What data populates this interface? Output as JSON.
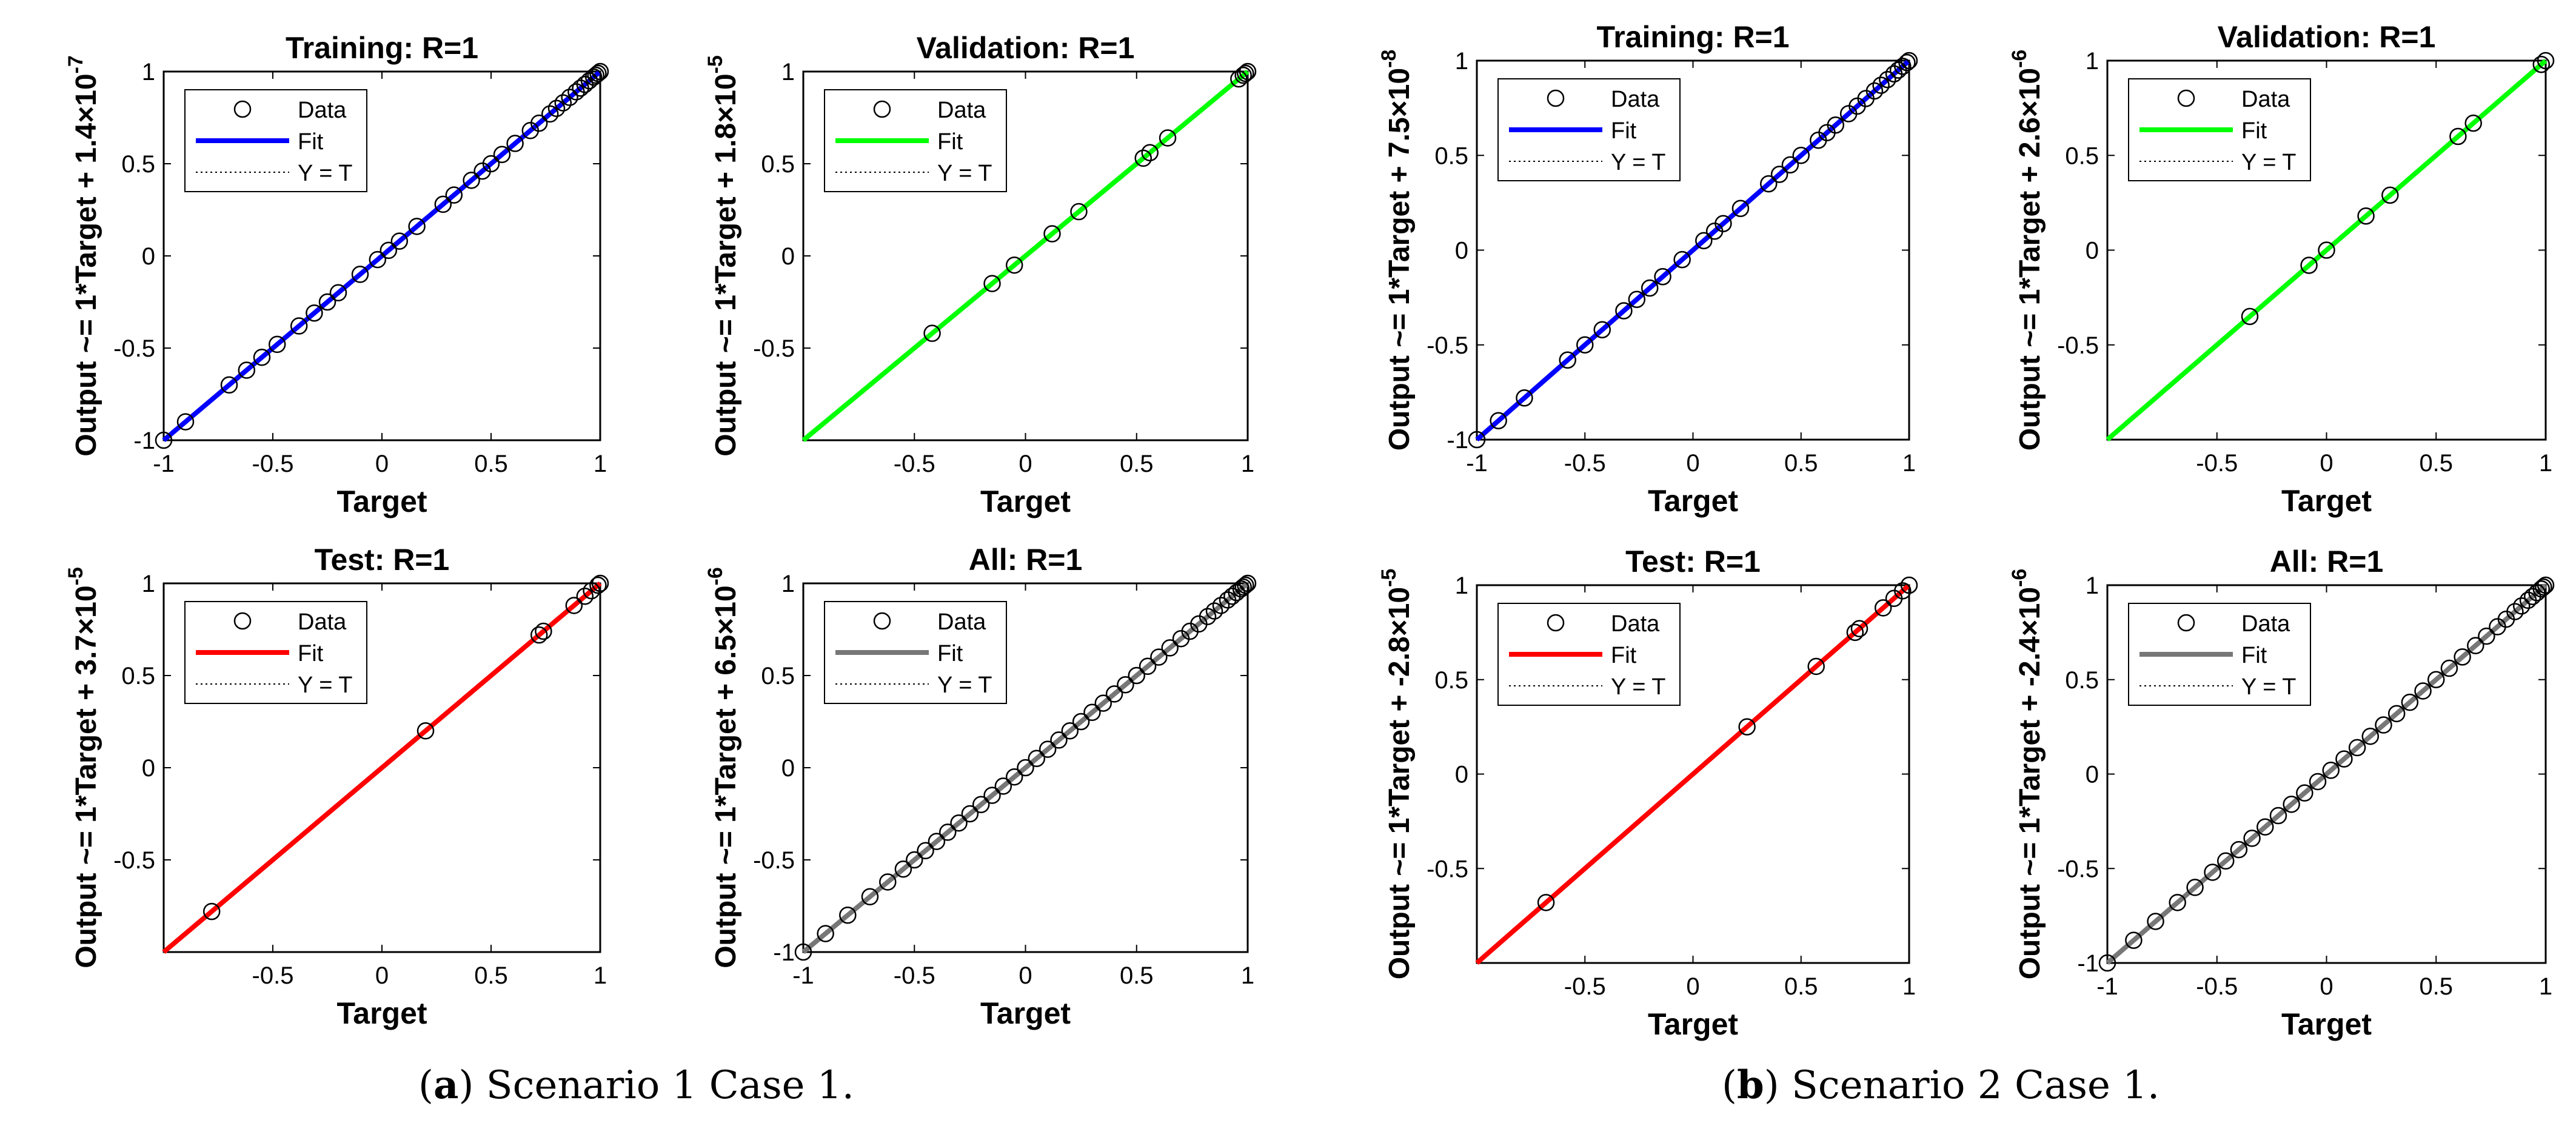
{
  "captions": [
    {
      "label": "a",
      "text": "Scenario 1 Case 1."
    },
    {
      "label": "b",
      "text": "Scenario 2 Case 1."
    }
  ],
  "legend_labels": {
    "data": "Data",
    "fit": "Fit",
    "ident": "Y = T"
  },
  "colors": {
    "training": "#0000ff",
    "validation": "#00ff00",
    "test": "#ff0000",
    "all": "#777777",
    "markers": "#000000"
  },
  "chart_data": [
    {
      "id": "s1-training",
      "type": "scatter",
      "title": "Training: R=1",
      "xlabel": "Target",
      "ylabel": "Output ~= 1*Target + 1.4×10",
      "ylabel_exp": "-7",
      "xlim": [
        -1,
        1
      ],
      "ylim": [
        -1,
        1
      ],
      "xticks": [
        "-1",
        "-0.5",
        "0",
        "0.5",
        "1"
      ],
      "yticks": [
        "-1",
        "-0.5",
        "0",
        "0.5",
        "1"
      ],
      "fit_color": "#0000ff",
      "legend_location": "top-left",
      "series": [
        {
          "name": "Data",
          "values": [
            -1,
            -0.9,
            -0.7,
            -0.62,
            -0.55,
            -0.48,
            -0.38,
            -0.31,
            -0.25,
            -0.2,
            -0.1,
            -0.02,
            0.03,
            0.08,
            0.16,
            0.28,
            0.33,
            0.41,
            0.46,
            0.5,
            0.55,
            0.61,
            0.68,
            0.72,
            0.77,
            0.8,
            0.83,
            0.86,
            0.89,
            0.91,
            0.93,
            0.95,
            0.97,
            0.98,
            0.99,
            1
          ]
        }
      ]
    },
    {
      "id": "s1-validation",
      "type": "scatter",
      "title": "Validation: R=1",
      "xlabel": "Target",
      "ylabel": "Output ~= 1*Target + 1.8×10",
      "ylabel_exp": "-5",
      "xlim": [
        -1,
        1
      ],
      "ylim": [
        -1,
        1
      ],
      "xticks": [
        "-0.5",
        "0",
        "0.5",
        "1"
      ],
      "yticks": [
        "-0.5",
        "0",
        "0.5",
        "1"
      ],
      "fit_color": "#00ff00",
      "legend_location": "top-left",
      "series": [
        {
          "name": "Data",
          "values": [
            -0.42,
            -0.15,
            -0.05,
            0.12,
            0.24,
            0.53,
            0.56,
            0.64,
            0.96,
            0.98,
            0.99,
            1
          ]
        }
      ]
    },
    {
      "id": "s1-test",
      "type": "scatter",
      "title": "Test: R=1",
      "xlabel": "Target",
      "ylabel": "Output ~= 1*Target + 3.7×10",
      "ylabel_exp": "-5",
      "xlim": [
        -1,
        1
      ],
      "ylim": [
        -1,
        1
      ],
      "xticks": [
        "-0.5",
        "0",
        "0.5",
        "1"
      ],
      "yticks": [
        "-0.5",
        "0",
        "0.5",
        "1"
      ],
      "fit_color": "#ff0000",
      "legend_location": "top-left",
      "series": [
        {
          "name": "Data",
          "values": [
            -0.78,
            0.2,
            0.72,
            0.74,
            0.88,
            0.93,
            0.96,
            0.99,
            1
          ]
        }
      ]
    },
    {
      "id": "s1-all",
      "type": "scatter",
      "title": "All: R=1",
      "xlabel": "Target",
      "ylabel": "Output ~= 1*Target + 6.5×10",
      "ylabel_exp": "-6",
      "xlim": [
        -1,
        1
      ],
      "ylim": [
        -1,
        1
      ],
      "xticks": [
        "-1",
        "-0.5",
        "0",
        "0.5",
        "1"
      ],
      "yticks": [
        "-1",
        "-0.5",
        "0",
        "0.5",
        "1"
      ],
      "fit_color": "#777777",
      "legend_location": "top-left",
      "series": [
        {
          "name": "Data",
          "values": [
            -1,
            -0.9,
            -0.8,
            -0.7,
            -0.62,
            -0.55,
            -0.5,
            -0.45,
            -0.4,
            -0.35,
            -0.3,
            -0.25,
            -0.2,
            -0.15,
            -0.1,
            -0.05,
            0,
            0.05,
            0.1,
            0.15,
            0.2,
            0.25,
            0.3,
            0.35,
            0.4,
            0.45,
            0.5,
            0.55,
            0.6,
            0.65,
            0.7,
            0.74,
            0.78,
            0.82,
            0.85,
            0.88,
            0.91,
            0.93,
            0.95,
            0.97,
            0.98,
            0.99,
            1
          ]
        }
      ]
    },
    {
      "id": "s2-training",
      "type": "scatter",
      "title": "Training: R=1",
      "xlabel": "Target",
      "ylabel": "Output ~= 1*Target + 7.5×10",
      "ylabel_exp": "-8",
      "xlim": [
        -1,
        1
      ],
      "ylim": [
        -1,
        1
      ],
      "xticks": [
        "-1",
        "-0.5",
        "0",
        "0.5",
        "1"
      ],
      "yticks": [
        "-1",
        "-0.5",
        "0",
        "0.5",
        "1"
      ],
      "fit_color": "#0000ff",
      "legend_location": "top-left",
      "series": [
        {
          "name": "Data",
          "values": [
            -1,
            -0.9,
            -0.78,
            -0.58,
            -0.5,
            -0.42,
            -0.32,
            -0.26,
            -0.2,
            -0.14,
            -0.05,
            0.05,
            0.1,
            0.14,
            0.22,
            0.35,
            0.4,
            0.45,
            0.5,
            0.58,
            0.62,
            0.66,
            0.72,
            0.76,
            0.8,
            0.84,
            0.87,
            0.9,
            0.93,
            0.95,
            0.97,
            0.99,
            1
          ]
        }
      ]
    },
    {
      "id": "s2-validation",
      "type": "scatter",
      "title": "Validation: R=1",
      "xlabel": "Target",
      "ylabel": "Output ~= 1*Target + 2.6×10",
      "ylabel_exp": "-6",
      "xlim": [
        -1,
        1
      ],
      "ylim": [
        -1,
        1
      ],
      "xticks": [
        "-0.5",
        "0",
        "0.5",
        "1"
      ],
      "yticks": [
        "-0.5",
        "0",
        "0.5",
        "1"
      ],
      "fit_color": "#00ff00",
      "legend_location": "top-left",
      "series": [
        {
          "name": "Data",
          "values": [
            -0.35,
            -0.08,
            0,
            0.18,
            0.29,
            0.6,
            0.67,
            0.98,
            1
          ]
        }
      ]
    },
    {
      "id": "s2-test",
      "type": "scatter",
      "title": "Test: R=1",
      "xlabel": "Target",
      "ylabel": "Output ~= 1*Target + -2.8×10",
      "ylabel_exp": "-5",
      "xlim": [
        -1,
        1
      ],
      "ylim": [
        -1,
        1
      ],
      "xticks": [
        "-0.5",
        "0",
        "0.5",
        "1"
      ],
      "yticks": [
        "-0.5",
        "0",
        "0.5",
        "1"
      ],
      "fit_color": "#ff0000",
      "legend_location": "top-left",
      "series": [
        {
          "name": "Data",
          "values": [
            -0.68,
            0.25,
            0.57,
            0.75,
            0.77,
            0.88,
            0.93,
            0.97,
            1
          ]
        }
      ]
    },
    {
      "id": "s2-all",
      "type": "scatter",
      "title": "All: R=1",
      "xlabel": "Target",
      "ylabel": "Output ~= 1*Target + -2.4×10",
      "ylabel_exp": "-6",
      "xlim": [
        -1,
        1
      ],
      "ylim": [
        -1,
        1
      ],
      "xticks": [
        "-1",
        "-0.5",
        "0",
        "0.5",
        "1"
      ],
      "yticks": [
        "-1",
        "-0.5",
        "0",
        "0.5",
        "1"
      ],
      "fit_color": "#777777",
      "legend_location": "top-left",
      "series": [
        {
          "name": "Data",
          "values": [
            -1,
            -0.88,
            -0.78,
            -0.68,
            -0.6,
            -0.52,
            -0.46,
            -0.4,
            -0.34,
            -0.28,
            -0.22,
            -0.16,
            -0.1,
            -0.04,
            0.02,
            0.08,
            0.14,
            0.2,
            0.26,
            0.32,
            0.38,
            0.44,
            0.5,
            0.56,
            0.62,
            0.68,
            0.73,
            0.78,
            0.82,
            0.86,
            0.89,
            0.92,
            0.94,
            0.96,
            0.98,
            0.99,
            1
          ]
        }
      ]
    }
  ]
}
